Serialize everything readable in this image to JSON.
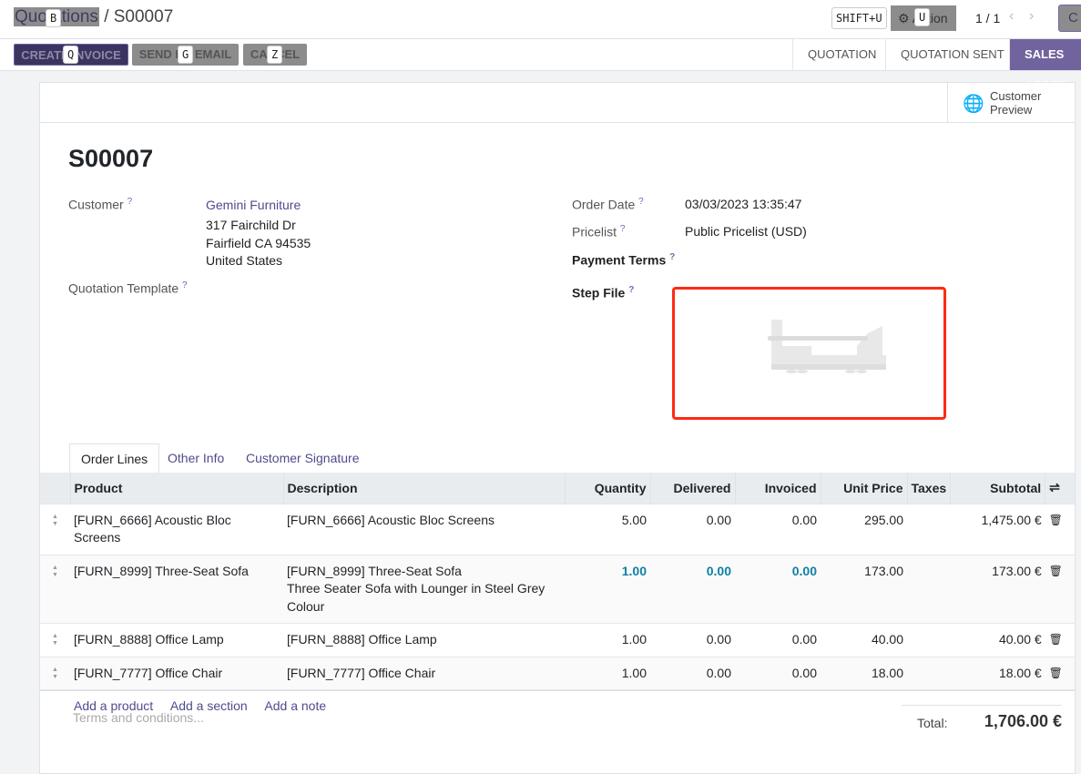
{
  "breadcrumb": {
    "parent": "Quotations",
    "current": "S00007"
  },
  "shortcuts": {
    "parent": "B",
    "create_invoice": "Q",
    "send_email": "G",
    "cancel": "Z",
    "shift": "SHIFT+U",
    "action": "U"
  },
  "toolbar": {
    "action": "Action",
    "pager": "1 / 1",
    "create": "C"
  },
  "buttons": {
    "create_invoice": "CREATE INVOICE",
    "send_email": "SEND BY EMAIL",
    "cancel": "CANCEL"
  },
  "stages": [
    "QUOTATION",
    "QUOTATION SENT",
    "SALES ORDER"
  ],
  "customer_preview": "Customer Preview",
  "record": {
    "name": "S00007",
    "customer_label": "Customer",
    "customer": "Gemini Furniture",
    "address": [
      "317 Fairchild Dr",
      "Fairfield CA 94535",
      "United States"
    ],
    "template_label": "Quotation Template",
    "order_date_label": "Order Date",
    "order_date": "03/03/2023 13:35:47",
    "pricelist_label": "Pricelist",
    "pricelist": "Public Pricelist (USD)",
    "payment_terms_label": "Payment Terms",
    "step_file_label": "Step File"
  },
  "tabs": [
    "Order Lines",
    "Other Info",
    "Customer Signature"
  ],
  "columns": [
    "Product",
    "Description",
    "Quantity",
    "Delivered",
    "Invoiced",
    "Unit Price",
    "Taxes",
    "Subtotal"
  ],
  "lines": [
    {
      "product": "[FURN_6666] Acoustic Bloc Screens",
      "description": "[FURN_6666] Acoustic Bloc Screens",
      "qty": "5.00",
      "delivered": "0.00",
      "invoiced": "0.00",
      "price": "295.00",
      "taxes": "",
      "subtotal": "1,475.00 €"
    },
    {
      "product": "[FURN_8999] Three-Seat Sofa",
      "description": "[FURN_8999] Three-Seat Sofa\nThree Seater Sofa with Lounger in Steel Grey\nColour",
      "qty": "1.00",
      "delivered": "0.00",
      "invoiced": "0.00",
      "price": "173.00",
      "taxes": "",
      "subtotal": "173.00 €"
    },
    {
      "product": "[FURN_8888] Office Lamp",
      "description": "[FURN_8888] Office Lamp",
      "qty": "1.00",
      "delivered": "0.00",
      "invoiced": "0.00",
      "price": "40.00",
      "taxes": "",
      "subtotal": "40.00 €"
    },
    {
      "product": "[FURN_7777] Office Chair",
      "description": "[FURN_7777] Office Chair",
      "qty": "1.00",
      "delivered": "0.00",
      "invoiced": "0.00",
      "price": "18.00",
      "taxes": "",
      "subtotal": "18.00 €"
    }
  ],
  "add_links": [
    "Add a product",
    "Add a section",
    "Add a note"
  ],
  "terms_placeholder": "Terms and conditions...",
  "total": {
    "label": "Total:",
    "value": "1,706.00 €"
  },
  "colors": {
    "accent": "#71639e",
    "highlight_border": "#ff2a12"
  }
}
